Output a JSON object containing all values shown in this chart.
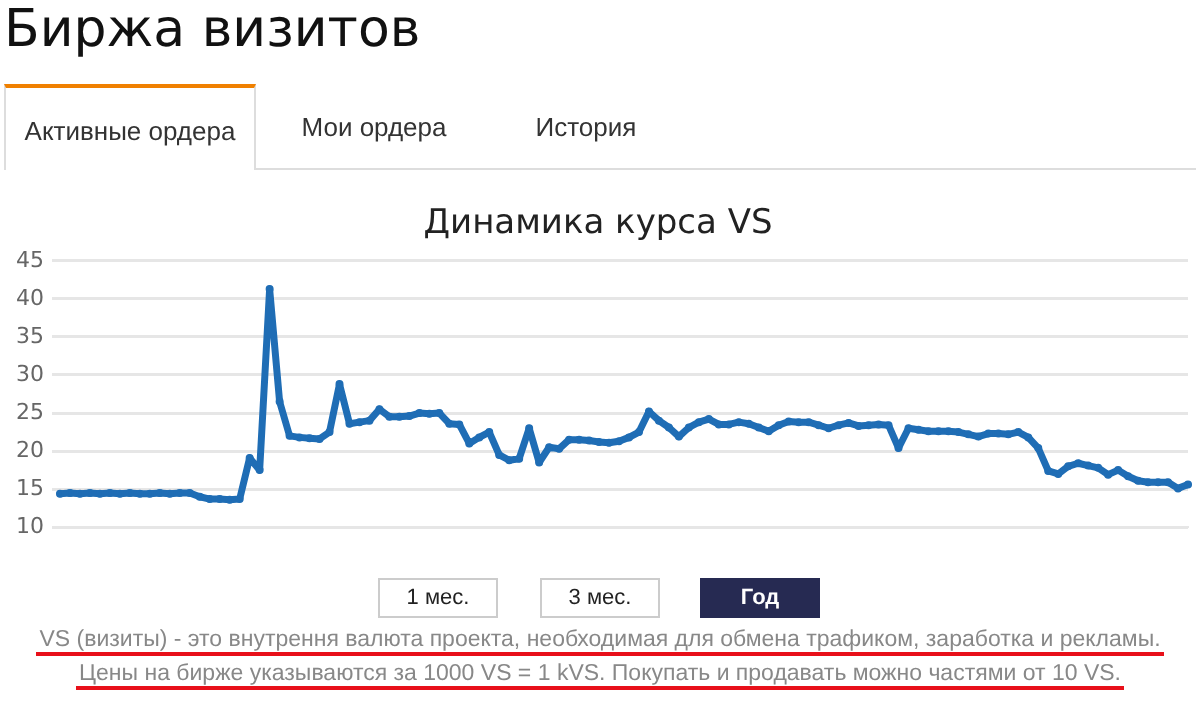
{
  "chart_data": {
    "type": "line",
    "title": "Динамика курса VS",
    "annotations": [
      "Биржа визитов",
      "Активные ордера",
      "Мои ордера",
      "История",
      "1 мес.",
      "3 мес.",
      "Год",
      "VS (визиты) - это внутрення валюта проекта, необходимая для обмена трафиком, заработка и рекламы.",
      "Цены на бирже указываются за 1000 VS = 1 kVS. Покупать и продавать можно частями от 10 VS."
    ],
    "categories": [
      null,
      null,
      null,
      null,
      null,
      null,
      null,
      null,
      null,
      null,
      null,
      null,
      null,
      null,
      null,
      null,
      null,
      null,
      null,
      null,
      null,
      null,
      null,
      null,
      null,
      null,
      null,
      null,
      null,
      null,
      null,
      null,
      null,
      null,
      null,
      null,
      null,
      null,
      null,
      null,
      null,
      null,
      null,
      null,
      null,
      null,
      null,
      null,
      null,
      null,
      null,
      null,
      null,
      null,
      null,
      null,
      null,
      null,
      null,
      null,
      null,
      null,
      null,
      null,
      null,
      null,
      null,
      null,
      null,
      null,
      null,
      null,
      null,
      null,
      null,
      null,
      null,
      null,
      null,
      null,
      null,
      null,
      null,
      null,
      null,
      null,
      null,
      null,
      null,
      null,
      null,
      null,
      null,
      null,
      null,
      null,
      null,
      null,
      null,
      null,
      null,
      null,
      null,
      null,
      null,
      null,
      null,
      null,
      null,
      null,
      null,
      null,
      null,
      null
    ],
    "series": [
      {
        "color": "#1f6db5",
        "values": [
          14.4,
          14.5,
          14.4,
          14.5,
          14.4,
          14.5,
          14.4,
          14.5,
          14.4,
          14.4,
          14.5,
          14.4,
          14.5,
          14.5,
          14.0,
          13.7,
          13.7,
          13.6,
          13.7,
          19.1,
          17.5,
          41.3,
          26.5,
          22,
          21.8,
          21.7,
          21.6,
          22.5,
          28.8,
          23.6,
          23.8,
          24,
          25.5,
          24.5,
          24.5,
          24.6,
          25,
          24.9,
          25,
          23.6,
          23.5,
          21,
          21.8,
          22.5,
          19.5,
          18.8,
          19,
          23,
          18.5,
          20.5,
          20.3,
          21.5,
          21.5,
          21.4,
          21.2,
          21.1,
          21.3,
          21.8,
          22.5,
          25.2,
          24,
          23.1,
          21.9,
          23.1,
          23.8,
          24.2,
          23.5,
          23.5,
          23.8,
          23.6,
          23.1,
          22.6,
          23.4,
          23.9,
          23.8,
          23.8,
          23.4,
          23,
          23.4,
          23.7,
          23.3,
          23.4,
          23.5,
          23.4,
          20.4,
          23,
          22.8,
          22.6,
          22.6,
          22.6,
          22.5,
          22.2,
          21.9,
          22.3,
          22.3,
          22.2,
          22.5,
          21.8,
          20.4,
          17.4,
          17,
          18,
          18.4,
          18.1,
          17.8,
          16.9,
          17.5,
          16.7,
          16.1,
          15.9,
          15.9,
          15.9,
          15.1,
          15.6
        ]
      }
    ],
    "ylim": [
      10,
      45
    ],
    "yticks": [
      10,
      15,
      20,
      25,
      30,
      35,
      40,
      45
    ],
    "grid": "y",
    "legend": false,
    "marker": "circle",
    "line_style": "solid"
  }
}
